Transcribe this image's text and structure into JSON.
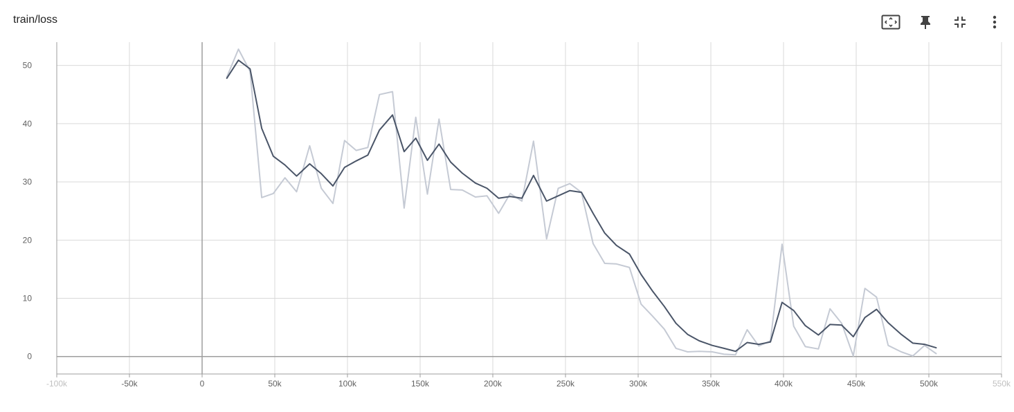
{
  "header": {
    "title": "train/loss"
  },
  "toolbar": {
    "buttons": [
      {
        "name": "fit-domain-icon"
      },
      {
        "name": "pin-icon"
      },
      {
        "name": "collapse-icon"
      },
      {
        "name": "more-vert-icon"
      }
    ]
  },
  "colors": {
    "smoothed": "#4a5568",
    "raw": "#c5cad4",
    "grid": "#d9d9d9",
    "axis": "#9e9e9e"
  },
  "chart_data": {
    "type": "line",
    "title": "train/loss",
    "xlim": [
      -100000,
      550000
    ],
    "ylim": [
      -3,
      54
    ],
    "x_ticks": [
      -100000,
      -50000,
      0,
      50000,
      100000,
      150000,
      200000,
      250000,
      300000,
      350000,
      400000,
      450000,
      500000,
      550000
    ],
    "x_tick_labels": [
      "-100k",
      "-50k",
      "0",
      "50k",
      "100k",
      "150k",
      "200k",
      "250k",
      "300k",
      "350k",
      "400k",
      "450k",
      "500k",
      "550k"
    ],
    "x_tick_faded": [
      true,
      false,
      false,
      false,
      false,
      false,
      false,
      false,
      false,
      false,
      false,
      false,
      false,
      true
    ],
    "y_ticks": [
      0,
      10,
      20,
      30,
      40,
      50
    ],
    "y_tick_labels": [
      "0",
      "10",
      "20",
      "30",
      "40",
      "50"
    ],
    "grid": true,
    "series": [
      {
        "style": "raw",
        "x": [
          17000,
          25000,
          33000,
          41000,
          49000,
          57000,
          65000,
          74000,
          82000,
          90000,
          98000,
          106000,
          114000,
          122000,
          131000,
          139000,
          147000,
          155000,
          163000,
          171000,
          179000,
          188000,
          196000,
          204000,
          212000,
          220000,
          228000,
          237000,
          245000,
          253000,
          261000,
          269000,
          277000,
          285000,
          294000,
          302000,
          310000,
          318000,
          326000,
          334000,
          342000,
          351000,
          359000,
          367000,
          375000,
          383000,
          391000,
          399000,
          407000,
          415000,
          424000,
          432000,
          440000,
          448000,
          456000,
          464000,
          472000,
          481000,
          489000,
          497000,
          505000
        ],
        "y": [
          48,
          52.8,
          49,
          27.3,
          28,
          30.7,
          28.3,
          36.2,
          28.9,
          26.3,
          37.1,
          35.4,
          35.9,
          45,
          45.5,
          25.5,
          41.1,
          27.9,
          40.8,
          28.7,
          28.6,
          27.4,
          27.6,
          24.6,
          28,
          26.7,
          37,
          20.2,
          28.9,
          29.7,
          28.2,
          19.4,
          16,
          15.9,
          15.3,
          9,
          6.9,
          4.7,
          1.4,
          0.8,
          0.9,
          0.8,
          0.4,
          0.3,
          4.6,
          1.8,
          2.7,
          19.3,
          5.2,
          1.7,
          1.3,
          8.2,
          5.7,
          0.1,
          11.7,
          10.2,
          1.9,
          0.8,
          0.1,
          1.9,
          0.5
        ]
      },
      {
        "style": "smoothed",
        "x": [
          17000,
          25000,
          33000,
          41000,
          49000,
          57000,
          65000,
          74000,
          82000,
          90000,
          98000,
          106000,
          114000,
          122000,
          131000,
          139000,
          147000,
          155000,
          163000,
          171000,
          179000,
          188000,
          196000,
          204000,
          212000,
          220000,
          228000,
          237000,
          245000,
          253000,
          261000,
          269000,
          277000,
          285000,
          294000,
          302000,
          310000,
          318000,
          326000,
          334000,
          342000,
          351000,
          359000,
          367000,
          375000,
          383000,
          391000,
          399000,
          407000,
          415000,
          424000,
          432000,
          440000,
          448000,
          456000,
          464000,
          472000,
          481000,
          489000,
          497000,
          505000
        ],
        "y": [
          47.8,
          50.9,
          49.4,
          39.2,
          34.4,
          32.9,
          31,
          33.1,
          31.4,
          29.3,
          32.5,
          33.6,
          34.6,
          38.9,
          41.5,
          35.2,
          37.5,
          33.7,
          36.5,
          33.4,
          31.5,
          29.8,
          28.9,
          27.2,
          27.5,
          27.2,
          31.1,
          26.7,
          27.6,
          28.5,
          28.2,
          24.6,
          21.2,
          19.1,
          17.6,
          14.1,
          11.2,
          8.6,
          5.7,
          3.8,
          2.7,
          1.9,
          1.4,
          0.9,
          2.4,
          2.1,
          2.5,
          9.3,
          7.9,
          5.3,
          3.7,
          5.5,
          5.4,
          3.4,
          6.7,
          8.1,
          5.8,
          3.8,
          2.3,
          2.1,
          1.5
        ]
      }
    ]
  }
}
